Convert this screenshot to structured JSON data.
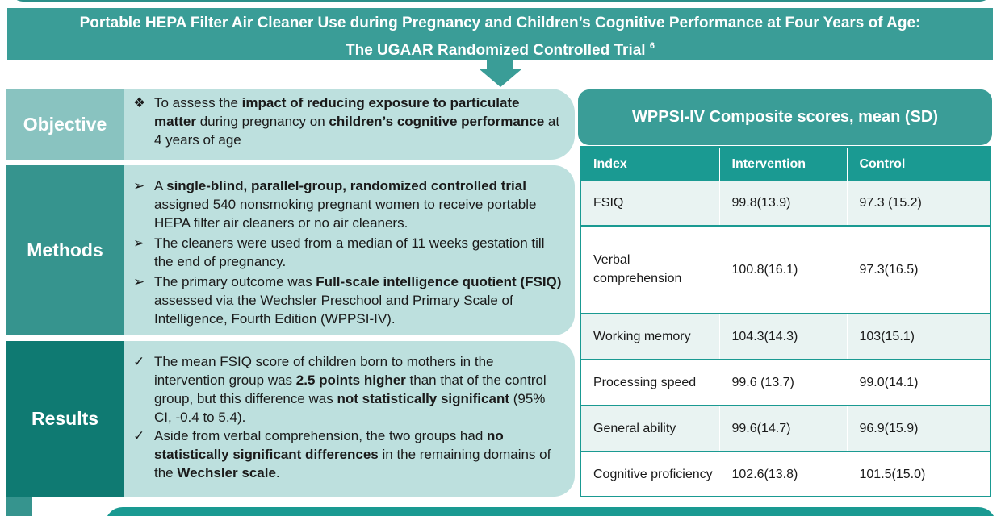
{
  "title": {
    "line1": "Portable HEPA Filter Air Cleaner Use during Pregnancy and Children’s Cognitive Performance at Four Years of Age:",
    "line2": "The UGAAR Randomized Controlled Trial",
    "ref": "6"
  },
  "objective": {
    "label": "Objective",
    "items": [
      {
        "mark": "❖",
        "parts": [
          {
            "t": "To assess the ",
            "b": false
          },
          {
            "t": "impact of reducing exposure to particulate matter",
            "b": true
          },
          {
            "t": " during pregnancy on ",
            "b": false
          },
          {
            "t": "children’s cognitive performance",
            "b": true
          },
          {
            "t": " at 4 years of age",
            "b": false
          }
        ]
      }
    ]
  },
  "methods": {
    "label": "Methods",
    "items": [
      {
        "mark": "➢",
        "parts": [
          {
            "t": "A ",
            "b": false
          },
          {
            "t": "single-blind, parallel-group, randomized controlled trial",
            "b": true
          },
          {
            "t": " assigned 540 nonsmoking pregnant women to receive portable HEPA filter air cleaners or no air cleaners.",
            "b": false
          }
        ]
      },
      {
        "mark": "➢",
        "parts": [
          {
            "t": "The cleaners were used from a median of 11 weeks gestation till the end of pregnancy.",
            "b": false
          }
        ]
      },
      {
        "mark": "➢",
        "parts": [
          {
            "t": "The primary outcome was ",
            "b": false
          },
          {
            "t": "Full-scale intelligence quotient (FSIQ)",
            "b": true
          },
          {
            "t": " assessed via the Wechsler Preschool and Primary Scale of Intelligence, Fourth Edition (WPPSI-IV).",
            "b": false
          }
        ]
      }
    ]
  },
  "results": {
    "label": "Results",
    "items": [
      {
        "mark": "✓",
        "parts": [
          {
            "t": "The mean FSIQ score of children born to mothers in the intervention group was ",
            "b": false
          },
          {
            "t": "2.5 points higher",
            "b": true
          },
          {
            "t": " than that of the control group, but this difference was ",
            "b": false
          },
          {
            "t": "not statistically significant",
            "b": true
          },
          {
            "t": " (95% CI, -0.4 to 5.4).",
            "b": false
          }
        ]
      },
      {
        "mark": "✓",
        "parts": [
          {
            "t": "Aside from verbal comprehension, the two groups had ",
            "b": false
          },
          {
            "t": "no statistically significant differences",
            "b": true
          },
          {
            "t": " in the remaining domains of the ",
            "b": false
          },
          {
            "t": "Wechsler scale",
            "b": true
          },
          {
            "t": ".",
            "b": false
          }
        ]
      }
    ]
  },
  "table": {
    "title": "WPPSI-IV Composite scores, mean (SD)",
    "columns": [
      "Index",
      "Intervention",
      "Control"
    ],
    "rows": [
      [
        "FSIQ",
        "99.8(13.9)",
        "97.3 (15.2)"
      ],
      [
        "Verbal comprehension",
        "100.8(16.1)",
        "97.3(16.5)"
      ],
      [
        "Working memory",
        "104.3(14.3)",
        "103(15.1)"
      ],
      [
        "Processing speed",
        "99.6 (13.7)",
        "99.0(14.1)"
      ],
      [
        "General ability",
        "99.6(14.7)",
        "96.9(15.9)"
      ],
      [
        "Cognitive proficiency",
        "102.6(13.8)",
        "101.5(15.0)"
      ]
    ]
  },
  "colors": {
    "banner": "#3a9d97",
    "table_accent": "#1a9a92",
    "panel_fill": "#bde0de",
    "objective_label": "#89c3c0",
    "methods_label": "#36948e",
    "results_label": "#0f7a72"
  }
}
